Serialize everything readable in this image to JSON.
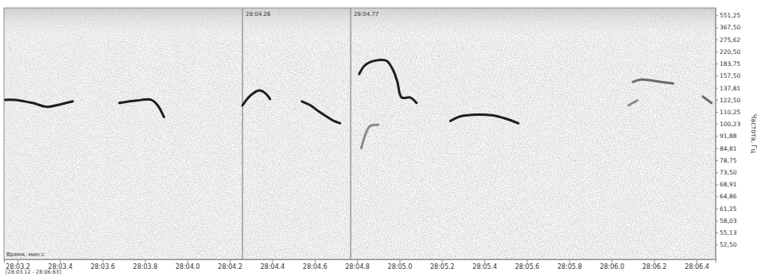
{
  "chart_data": {
    "type": "line",
    "x_label": "Время, мин:с",
    "y_label": "Частота, Гц",
    "subtitle": "[28:03.12 - 28:06.63]",
    "xlim": [
      1683.136,
      1686.49
    ],
    "xticks": [
      {
        "value": 1683.2,
        "label": "28:03.2"
      },
      {
        "value": 1683.4,
        "label": "28:03.4"
      },
      {
        "value": 1683.6,
        "label": "28:03.6"
      },
      {
        "value": 1683.8,
        "label": "28:03.8"
      },
      {
        "value": 1684.0,
        "label": "28:04.0"
      },
      {
        "value": 1684.2,
        "label": "28:04.2"
      },
      {
        "value": 1684.4,
        "label": "28:04.4"
      },
      {
        "value": 1684.6,
        "label": "28:04.6"
      },
      {
        "value": 1684.8,
        "label": "28:04.8"
      },
      {
        "value": 1685.0,
        "label": "28:05.0"
      },
      {
        "value": 1685.2,
        "label": "28:05.2"
      },
      {
        "value": 1685.4,
        "label": "28:05.4"
      },
      {
        "value": 1685.6,
        "label": "28:05.6"
      },
      {
        "value": 1685.8,
        "label": "28:05.8"
      },
      {
        "value": 1686.0,
        "label": "28:06.0"
      },
      {
        "value": 1686.2,
        "label": "28:06.2"
      },
      {
        "value": 1686.4,
        "label": "28:06.4"
      }
    ],
    "ylim": [
      49.7,
      813
    ],
    "yticks": [
      {
        "value": 551.25,
        "label": "551,25"
      },
      {
        "value": 367.5,
        "label": "367,50"
      },
      {
        "value": 275.62,
        "label": "275,62"
      },
      {
        "value": 220.5,
        "label": "220,50"
      },
      {
        "value": 183.75,
        "label": "183,75"
      },
      {
        "value": 157.5,
        "label": "157,50"
      },
      {
        "value": 137.81,
        "label": "137,81"
      },
      {
        "value": 122.5,
        "label": "122,50"
      },
      {
        "value": 110.25,
        "label": "110,25"
      },
      {
        "value": 100.23,
        "label": "100,23"
      },
      {
        "value": 91.88,
        "label": "91,88"
      },
      {
        "value": 84.81,
        "label": "84,81"
      },
      {
        "value": 78.75,
        "label": "78,75"
      },
      {
        "value": 73.5,
        "label": "73,50"
      },
      {
        "value": 68.91,
        "label": "68,91"
      },
      {
        "value": 64.86,
        "label": "64,86"
      },
      {
        "value": 61.25,
        "label": "61,25"
      },
      {
        "value": 58.03,
        "label": "58,03"
      },
      {
        "value": 55.13,
        "label": "55,13"
      },
      {
        "value": 52.5,
        "label": "52,50"
      }
    ],
    "annotations": [
      {
        "x": 1684.26,
        "text": "28:04.26"
      },
      {
        "x": 1684.77,
        "text": "28:04.77"
      }
    ],
    "grid": false,
    "series": [
      {
        "color": "#1e1e1e",
        "x": [
          1683.136,
          1683.19,
          1683.27,
          1683.34,
          1683.4,
          1683.46
        ],
        "values": [
          122.9,
          122.9,
          119.5,
          115.5,
          117.9,
          121.2
        ]
      },
      {
        "color": "#1e1e1e",
        "x": [
          1683.68,
          1683.76,
          1683.83,
          1683.86,
          1683.89
        ],
        "values": [
          119.5,
          122.1,
          122.9,
          117.0,
          106.1
        ]
      },
      {
        "color": "#1e1e1e",
        "x": [
          1684.26,
          1684.3,
          1684.34,
          1684.37,
          1684.39
        ],
        "values": [
          117.0,
          128.5,
          134.6,
          130.4,
          123.8
        ]
      },
      {
        "color": "#1e1e1e",
        "x": [
          1684.54,
          1684.58,
          1684.62,
          1684.66,
          1684.69,
          1684.72
        ],
        "values": [
          121.2,
          117.0,
          111.0,
          106.1,
          102.9,
          101.1
        ]
      },
      {
        "color": "#1e1e1e",
        "x": [
          1684.81,
          1684.84,
          1684.9,
          1684.94,
          1684.97,
          1684.99,
          1685.01,
          1685.05,
          1685.08
        ],
        "values": [
          161.2,
          181.8,
          194.2,
          192.0,
          169.2,
          147.3,
          125.6,
          125.6,
          119.5
        ]
      },
      {
        "color": "#8a8a8a",
        "x": [
          1684.82,
          1684.84,
          1684.86,
          1684.9
        ],
        "values": [
          85.0,
          93.4,
          98.8,
          99.9
        ]
      },
      {
        "color": "#1e1e1e",
        "x": [
          1685.24,
          1685.29,
          1685.37,
          1685.44,
          1685.5,
          1685.56
        ],
        "values": [
          102.9,
          106.8,
          108.2,
          107.5,
          104.8,
          101.1
        ]
      },
      {
        "color": "#6a6a6a",
        "x": [
          1686.1,
          1686.14,
          1686.23,
          1686.29
        ],
        "values": [
          147.3,
          151.2,
          147.3,
          144.8
        ]
      },
      {
        "color": "#8a8a8a",
        "x": [
          1686.08,
          1686.12
        ],
        "values": [
          117.0,
          122.1
        ]
      },
      {
        "color": "#6a6a6a",
        "x": [
          1686.43,
          1686.47
        ],
        "values": [
          126.6,
          119.5
        ]
      }
    ]
  }
}
